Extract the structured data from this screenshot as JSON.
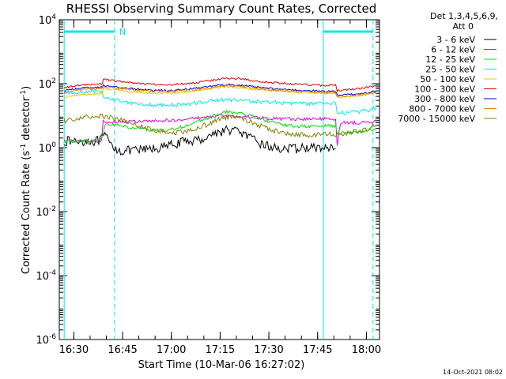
{
  "chart_data": {
    "type": "line",
    "title": "RHESSI Observing Summary Count Rates, Corrected",
    "xlabel": "Start Time (10-Mar-06 16:27:02)",
    "ylabel_parts": [
      "Corrected Count Rate (s",
      "-1",
      " detector",
      "-1",
      ")"
    ],
    "y_scale": "log",
    "ylim": [
      1e-06,
      10000.0
    ],
    "y_ticks": [
      {
        "base": "10",
        "exp": "4",
        "value": 10000
      },
      {
        "base": "10",
        "exp": "2",
        "value": 100
      },
      {
        "base": "10",
        "exp": "0",
        "value": 1
      },
      {
        "base": "10",
        "exp": "-2",
        "value": 0.01
      },
      {
        "base": "10",
        "exp": "-4",
        "value": 0.0001
      },
      {
        "base": "10",
        "exp": "-6",
        "value": 1e-06
      }
    ],
    "x_unit": "minutes after 16:27:02",
    "xlim": [
      -1.5,
      97
    ],
    "x_ticks": [
      {
        "label": "16:30",
        "value": 2.97
      },
      {
        "label": "16:45",
        "value": 17.97
      },
      {
        "label": "17:00",
        "value": 32.97
      },
      {
        "label": "17:15",
        "value": 47.97
      },
      {
        "label": "17:30",
        "value": 62.97
      },
      {
        "label": "17:45",
        "value": 77.97
      },
      {
        "label": "18:00",
        "value": 92.97
      }
    ],
    "legend": {
      "header_lines": [
        "Det 1,3,4,5,6,9,",
        "Att 0"
      ],
      "placement": "right"
    },
    "series": [
      {
        "name": "3 - 6 keV",
        "color": "#000000",
        "points": [
          [
            0,
            1.6
          ],
          [
            11,
            1.6
          ],
          [
            12.5,
            2.5
          ],
          [
            14,
            1.3
          ],
          [
            17,
            0.8
          ],
          [
            22,
            0.8
          ],
          [
            26,
            0.9
          ],
          [
            30,
            1.0
          ],
          [
            34,
            1.3
          ],
          [
            38,
            1.6
          ],
          [
            42,
            1.8
          ],
          [
            45,
            2.5
          ],
          [
            48,
            3.2
          ],
          [
            51,
            3.6
          ],
          [
            54,
            3.2
          ],
          [
            57,
            2.0
          ],
          [
            60,
            1.4
          ],
          [
            64,
            1.0
          ],
          [
            70,
            0.9
          ],
          [
            75,
            1.0
          ],
          [
            80,
            0.95
          ],
          [
            83.5,
            0.95
          ]
        ]
      },
      {
        "name": "6 - 12 keV",
        "color": "#e000e0",
        "points": [
          [
            0,
            1.6
          ],
          [
            11.5,
            1.6
          ],
          [
            12,
            6.5
          ],
          [
            16,
            6.5
          ],
          [
            22,
            6.5
          ],
          [
            28,
            6.8
          ],
          [
            34,
            7.2
          ],
          [
            38,
            8.0
          ],
          [
            42,
            8.5
          ],
          [
            46,
            9.5
          ],
          [
            48,
            10
          ],
          [
            52,
            9.5
          ],
          [
            56,
            9.0
          ],
          [
            60,
            8.5
          ],
          [
            66,
            8.0
          ],
          [
            72,
            7.8
          ],
          [
            78,
            8.0
          ],
          [
            83.5,
            8.0
          ],
          [
            84,
            1.2
          ],
          [
            85,
            6.0
          ],
          [
            90,
            6.0
          ],
          [
            96,
            6.5
          ]
        ]
      },
      {
        "name": "12 - 25 keV",
        "color": "#00e000",
        "points": [
          [
            0,
            1.6
          ],
          [
            11,
            1.6
          ],
          [
            12,
            2.5
          ],
          [
            12.5,
            5.0
          ],
          [
            15,
            5.5
          ],
          [
            20,
            4.2
          ],
          [
            26,
            3.5
          ],
          [
            32,
            3.5
          ],
          [
            38,
            5.0
          ],
          [
            43,
            7.5
          ],
          [
            47,
            11
          ],
          [
            50,
            13
          ],
          [
            54,
            12
          ],
          [
            58,
            9.5
          ],
          [
            62,
            7.0
          ],
          [
            68,
            5.0
          ],
          [
            74,
            4.5
          ],
          [
            80,
            4.8
          ],
          [
            83.5,
            4.8
          ],
          [
            84,
            2.8
          ],
          [
            88,
            3.0
          ],
          [
            92,
            3.2
          ],
          [
            96,
            3.8
          ]
        ]
      },
      {
        "name": "25 - 50 keV",
        "color": "#00e8e8",
        "points": [
          [
            0,
            48
          ],
          [
            5,
            55
          ],
          [
            10,
            58
          ],
          [
            11.8,
            60
          ],
          [
            12,
            38
          ],
          [
            15,
            33
          ],
          [
            20,
            26
          ],
          [
            26,
            22
          ],
          [
            32,
            21
          ],
          [
            38,
            23
          ],
          [
            43,
            27
          ],
          [
            46,
            30
          ],
          [
            50,
            32
          ],
          [
            54,
            30
          ],
          [
            58,
            28
          ],
          [
            62,
            27
          ],
          [
            68,
            25
          ],
          [
            74,
            24
          ],
          [
            80,
            24
          ],
          [
            83.5,
            24
          ],
          [
            84,
            13
          ],
          [
            86,
            12
          ],
          [
            90,
            13
          ],
          [
            94,
            15
          ],
          [
            96,
            18
          ]
        ]
      },
      {
        "name": "50 - 100 keV",
        "color": "#e8c800",
        "points": [
          [
            0,
            38
          ],
          [
            5,
            45
          ],
          [
            10,
            48
          ],
          [
            11.8,
            50
          ],
          [
            12,
            70
          ],
          [
            16,
            62
          ],
          [
            22,
            54
          ],
          [
            28,
            50
          ],
          [
            34,
            52
          ],
          [
            40,
            58
          ],
          [
            45,
            70
          ],
          [
            50,
            80
          ],
          [
            54,
            76
          ],
          [
            58,
            68
          ],
          [
            64,
            60
          ],
          [
            70,
            55
          ],
          [
            76,
            52
          ],
          [
            80,
            50
          ],
          [
            83.5,
            50
          ],
          [
            84,
            38
          ],
          [
            88,
            40
          ],
          [
            92,
            44
          ],
          [
            96,
            55
          ]
        ]
      },
      {
        "name": "100 - 300 keV",
        "color": "#e00000",
        "points": [
          [
            0,
            75
          ],
          [
            5,
            90
          ],
          [
            10,
            95
          ],
          [
            11.8,
            100
          ],
          [
            12,
            140
          ],
          [
            16,
            120
          ],
          [
            22,
            102
          ],
          [
            28,
            94
          ],
          [
            34,
            95
          ],
          [
            40,
            105
          ],
          [
            45,
            125
          ],
          [
            50,
            150
          ],
          [
            54,
            145
          ],
          [
            58,
            125
          ],
          [
            64,
            108
          ],
          [
            70,
            98
          ],
          [
            76,
            92
          ],
          [
            80,
            88
          ],
          [
            83.5,
            88
          ],
          [
            84,
            62
          ],
          [
            88,
            65
          ],
          [
            92,
            72
          ],
          [
            96,
            88
          ]
        ]
      },
      {
        "name": "300 - 800 keV",
        "color": "#0000e0",
        "points": [
          [
            0,
            60
          ],
          [
            5,
            72
          ],
          [
            10,
            78
          ],
          [
            11.8,
            80
          ],
          [
            12,
            88
          ],
          [
            16,
            78
          ],
          [
            22,
            68
          ],
          [
            28,
            62
          ],
          [
            34,
            63
          ],
          [
            40,
            70
          ],
          [
            45,
            82
          ],
          [
            50,
            95
          ],
          [
            54,
            90
          ],
          [
            58,
            80
          ],
          [
            64,
            70
          ],
          [
            70,
            64
          ],
          [
            76,
            60
          ],
          [
            80,
            58
          ],
          [
            83.5,
            58
          ],
          [
            84,
            44
          ],
          [
            88,
            46
          ],
          [
            92,
            50
          ],
          [
            96,
            60
          ]
        ]
      },
      {
        "name": "800 - 7000 keV",
        "color": "#f08000",
        "points": [
          [
            0,
            55
          ],
          [
            5,
            65
          ],
          [
            10,
            70
          ],
          [
            11.8,
            72
          ],
          [
            12,
            82
          ],
          [
            16,
            72
          ],
          [
            22,
            62
          ],
          [
            28,
            57
          ],
          [
            34,
            58
          ],
          [
            40,
            64
          ],
          [
            45,
            75
          ],
          [
            50,
            86
          ],
          [
            54,
            82
          ],
          [
            58,
            73
          ],
          [
            64,
            64
          ],
          [
            70,
            58
          ],
          [
            76,
            55
          ],
          [
            80,
            53
          ],
          [
            83.5,
            53
          ],
          [
            84,
            40
          ],
          [
            88,
            42
          ],
          [
            92,
            46
          ],
          [
            96,
            56
          ]
        ]
      },
      {
        "name": "7000 - 15000 keV",
        "color": "#808000",
        "points": [
          [
            0,
            7
          ],
          [
            5,
            9
          ],
          [
            10,
            10
          ],
          [
            11.8,
            10
          ],
          [
            12,
            10
          ],
          [
            16,
            8
          ],
          [
            22,
            5
          ],
          [
            28,
            3.5
          ],
          [
            34,
            3.0
          ],
          [
            40,
            3.5
          ],
          [
            45,
            6.0
          ],
          [
            50,
            9.0
          ],
          [
            54,
            8.5
          ],
          [
            58,
            6.0
          ],
          [
            62,
            4.0
          ],
          [
            68,
            2.8
          ],
          [
            74,
            2.5
          ],
          [
            80,
            2.6
          ],
          [
            83.5,
            2.6
          ],
          [
            84,
            2.5
          ],
          [
            88,
            3.0
          ],
          [
            92,
            3.5
          ],
          [
            96,
            5.0
          ]
        ]
      }
    ],
    "attenuator_markers": [
      {
        "x": 0.0,
        "style": "solid",
        "color": "#00e8e8"
      },
      {
        "x": 15.5,
        "style": "dashed",
        "color": "#00e8e8"
      },
      {
        "x": 79.7,
        "style": "solid",
        "color": "#00e8e8"
      },
      {
        "x": 95.0,
        "style": "dashed",
        "color": "#00e8e8"
      }
    ],
    "night_bars": [
      {
        "x0": 0.0,
        "x1": 15.5,
        "label": "N"
      },
      {
        "x0": 79.7,
        "x1": 95.0,
        "label": ""
      }
    ]
  },
  "footer": {
    "timestamp": "14-Oct-2021 08:02"
  }
}
